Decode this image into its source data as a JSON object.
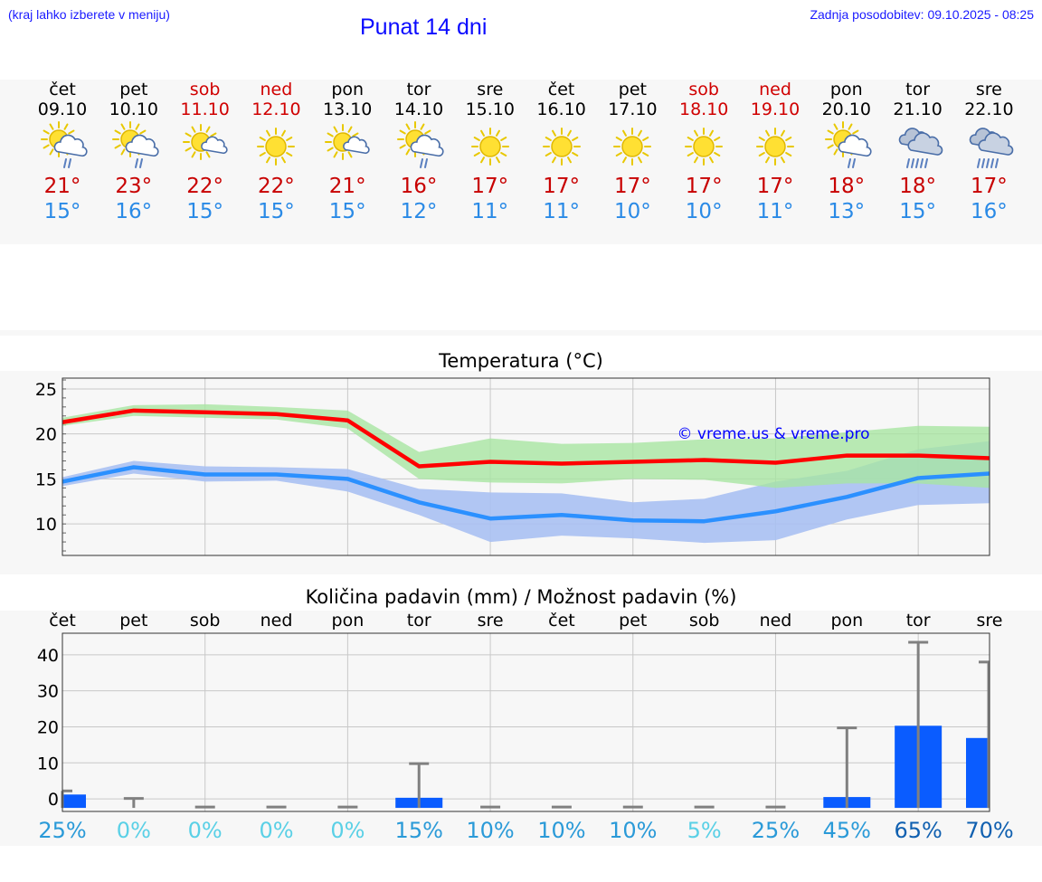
{
  "header": {
    "hint": "(kraj lahko izberete v meniju)",
    "title": "Punat 14 dni",
    "updated": "Zadnja posodobitev: 09.10.2025 - 08:25"
  },
  "days": [
    {
      "name": "čet",
      "date": "09.10",
      "weekend": false,
      "icon": "sun-cloud-rain-icon",
      "tmax": "21°",
      "tmin": "15°"
    },
    {
      "name": "pet",
      "date": "10.10",
      "weekend": false,
      "icon": "sun-cloud-rain-icon",
      "tmax": "23°",
      "tmin": "16°"
    },
    {
      "name": "sob",
      "date": "11.10",
      "weekend": true,
      "icon": "sun-small-cloud-icon",
      "tmax": "22°",
      "tmin": "15°"
    },
    {
      "name": "ned",
      "date": "12.10",
      "weekend": true,
      "icon": "sun-icon",
      "tmax": "22°",
      "tmin": "15°"
    },
    {
      "name": "pon",
      "date": "13.10",
      "weekend": false,
      "icon": "sun-small-cloud-icon",
      "tmax": "21°",
      "tmin": "15°"
    },
    {
      "name": "tor",
      "date": "14.10",
      "weekend": false,
      "icon": "sun-cloud-rain-icon",
      "tmax": "16°",
      "tmin": "12°"
    },
    {
      "name": "sre",
      "date": "15.10",
      "weekend": false,
      "icon": "sun-icon",
      "tmax": "17°",
      "tmin": "11°"
    },
    {
      "name": "čet",
      "date": "16.10",
      "weekend": false,
      "icon": "sun-icon",
      "tmax": "17°",
      "tmin": "11°"
    },
    {
      "name": "pet",
      "date": "17.10",
      "weekend": false,
      "icon": "sun-icon",
      "tmax": "17°",
      "tmin": "10°"
    },
    {
      "name": "sob",
      "date": "18.10",
      "weekend": true,
      "icon": "sun-icon",
      "tmax": "17°",
      "tmin": "10°"
    },
    {
      "name": "ned",
      "date": "19.10",
      "weekend": true,
      "icon": "sun-icon",
      "tmax": "17°",
      "tmin": "11°"
    },
    {
      "name": "pon",
      "date": "20.10",
      "weekend": false,
      "icon": "sun-cloud-rain-icon",
      "tmax": "18°",
      "tmin": "13°"
    },
    {
      "name": "tor",
      "date": "21.10",
      "weekend": false,
      "icon": "cloud-rain-icon",
      "tmax": "18°",
      "tmin": "15°"
    },
    {
      "name": "sre",
      "date": "22.10",
      "weekend": false,
      "icon": "cloud-rain-icon",
      "tmax": "17°",
      "tmin": "16°"
    }
  ],
  "colors": {
    "weekend": "#d00000",
    "tmax": "#c80000",
    "tmin": "#2a8ae6",
    "max_line": "#ff0000",
    "max_band": "#a6e6a0",
    "min_line": "#2b90ff",
    "min_band": "#a8c0f2",
    "bar": "#0a5cff",
    "whisker": "#808080",
    "watermark": "#0000ff"
  },
  "chart_data": [
    {
      "type": "line",
      "title": "Temperatura (°C)",
      "watermark": "© vreme.us & vreme.pro",
      "x": [
        0,
        1,
        2,
        3,
        4,
        5,
        6,
        7,
        8,
        9,
        10,
        11,
        12,
        13
      ],
      "ylim": [
        6.5,
        26.2
      ],
      "yticks": [
        10,
        15,
        20,
        25
      ],
      "series": [
        {
          "name": "max",
          "values": [
            21.3,
            22.6,
            22.4,
            22.2,
            21.5,
            16.4,
            16.9,
            16.7,
            16.9,
            17.1,
            16.8,
            17.6,
            17.6,
            17.3
          ],
          "lower": [
            20.9,
            22.0,
            21.8,
            21.6,
            20.6,
            15.0,
            14.6,
            14.5,
            15.0,
            14.9,
            14.0,
            14.5,
            14.5,
            14.0
          ],
          "upper": [
            21.8,
            23.2,
            23.3,
            23.0,
            22.6,
            18.0,
            19.5,
            18.9,
            19.0,
            19.4,
            19.5,
            20.2,
            20.9,
            20.8
          ]
        },
        {
          "name": "min",
          "values": [
            14.7,
            16.3,
            15.5,
            15.5,
            15.0,
            12.4,
            10.6,
            11.0,
            10.4,
            10.3,
            11.4,
            13.0,
            15.1,
            15.6
          ],
          "lower": [
            14.2,
            15.6,
            14.7,
            14.8,
            13.6,
            11.0,
            8.0,
            8.7,
            8.4,
            7.9,
            8.2,
            10.5,
            12.1,
            12.3
          ],
          "upper": [
            15.2,
            17.0,
            16.4,
            16.3,
            16.1,
            13.9,
            13.5,
            13.4,
            12.4,
            12.8,
            14.7,
            15.9,
            18.3,
            19.2
          ]
        }
      ]
    },
    {
      "type": "bar",
      "title": "Količina padavin (mm) / Možnost padavin (%)",
      "categories": [
        "čet",
        "pet",
        "sob",
        "ned",
        "pon",
        "tor",
        "sre",
        "čet",
        "pet",
        "sob",
        "ned",
        "pon",
        "tor",
        "sre"
      ],
      "ylim": [
        -3.5,
        46
      ],
      "yticks": [
        0,
        10,
        20,
        30,
        40
      ],
      "values": [
        1.2,
        0,
        0,
        0,
        0,
        0.3,
        0,
        0,
        0,
        0,
        0,
        0.5,
        20.3,
        16.9
      ],
      "whisker_max": [
        2.2,
        0.1,
        0,
        0,
        0,
        9.8,
        0,
        0,
        0,
        0,
        0,
        19.7,
        43.5,
        38.0
      ],
      "probability": [
        "25%",
        "0%",
        "0%",
        "0%",
        "0%",
        "15%",
        "10%",
        "10%",
        "10%",
        "5%",
        "25%",
        "45%",
        "65%",
        "70%"
      ],
      "probability_colors": [
        "#2a9ad8",
        "#5ad0e6",
        "#5ad0e6",
        "#5ad0e6",
        "#5ad0e6",
        "#2a9ad8",
        "#2a9ad8",
        "#2a9ad8",
        "#2a9ad8",
        "#5ad0e6",
        "#2a9ad8",
        "#2a9ad8",
        "#1060b0",
        "#1060b0"
      ]
    }
  ]
}
